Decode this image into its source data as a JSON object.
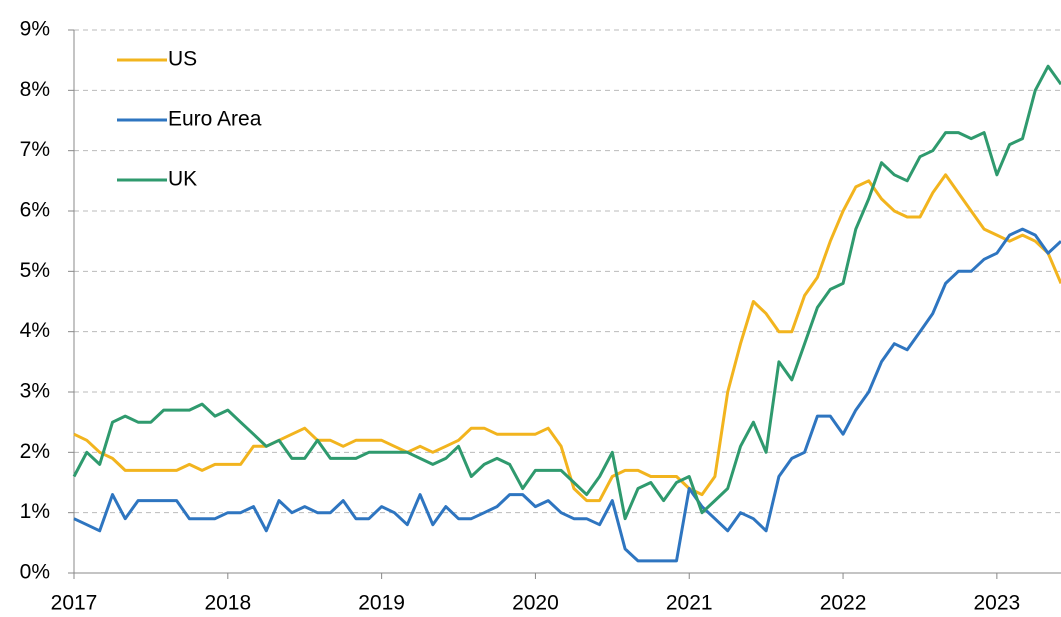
{
  "chart_data": {
    "type": "line",
    "x": [
      2017,
      2017.083,
      2017.167,
      2017.25,
      2017.333,
      2017.417,
      2017.5,
      2017.583,
      2017.667,
      2017.75,
      2017.833,
      2017.917,
      2018,
      2018.083,
      2018.167,
      2018.25,
      2018.333,
      2018.417,
      2018.5,
      2018.583,
      2018.667,
      2018.75,
      2018.833,
      2018.917,
      2019,
      2019.083,
      2019.167,
      2019.25,
      2019.333,
      2019.417,
      2019.5,
      2019.583,
      2019.667,
      2019.75,
      2019.833,
      2019.917,
      2020,
      2020.083,
      2020.167,
      2020.25,
      2020.333,
      2020.417,
      2020.5,
      2020.583,
      2020.667,
      2020.75,
      2020.833,
      2020.917,
      2021,
      2021.083,
      2021.167,
      2021.25,
      2021.333,
      2021.417,
      2021.5,
      2021.583,
      2021.667,
      2021.75,
      2021.833,
      2021.917,
      2022,
      2022.083,
      2022.167,
      2022.25,
      2022.333,
      2022.417,
      2022.5,
      2022.583,
      2022.667,
      2022.75,
      2022.833,
      2022.917,
      2023,
      2023.083,
      2023.167,
      2023.25,
      2023.333,
      2023.417
    ],
    "series": [
      {
        "name": "US",
        "color": "#f2b41e",
        "values": [
          2.3,
          2.2,
          2.0,
          1.9,
          1.7,
          1.7,
          1.7,
          1.7,
          1.7,
          1.8,
          1.7,
          1.8,
          1.8,
          1.8,
          2.1,
          2.1,
          2.2,
          2.3,
          2.4,
          2.2,
          2.2,
          2.1,
          2.2,
          2.2,
          2.2,
          2.1,
          2.0,
          2.1,
          2.0,
          2.1,
          2.2,
          2.4,
          2.4,
          2.3,
          2.3,
          2.3,
          2.3,
          2.4,
          2.1,
          1.4,
          1.2,
          1.2,
          1.6,
          1.7,
          1.7,
          1.6,
          1.6,
          1.6,
          1.4,
          1.3,
          1.6,
          3.0,
          3.8,
          4.5,
          4.3,
          4.0,
          4.0,
          4.6,
          4.9,
          5.5,
          6.0,
          6.4,
          6.5,
          6.2,
          6.0,
          5.9,
          5.9,
          6.3,
          6.6,
          6.3,
          6.0,
          5.7,
          5.6,
          5.5,
          5.6,
          5.5,
          5.3,
          4.8
        ]
      },
      {
        "name": "Euro Area",
        "color": "#2e75c0",
        "values": [
          0.9,
          0.8,
          0.7,
          1.3,
          0.9,
          1.2,
          1.2,
          1.2,
          1.2,
          0.9,
          0.9,
          0.9,
          1.0,
          1.0,
          1.1,
          0.7,
          1.2,
          1.0,
          1.1,
          1.0,
          1.0,
          1.2,
          0.9,
          0.9,
          1.1,
          1.0,
          0.8,
          1.3,
          0.8,
          1.1,
          0.9,
          0.9,
          1.0,
          1.1,
          1.3,
          1.3,
          1.1,
          1.2,
          1.0,
          0.9,
          0.9,
          0.8,
          1.2,
          0.4,
          0.2,
          0.2,
          0.2,
          0.2,
          1.4,
          1.1,
          0.9,
          0.7,
          1.0,
          0.9,
          0.7,
          1.6,
          1.9,
          2.0,
          2.6,
          2.6,
          2.3,
          2.7,
          3.0,
          3.5,
          3.8,
          3.7,
          4.0,
          4.3,
          4.8,
          5.0,
          5.0,
          5.2,
          5.3,
          5.6,
          5.7,
          5.6,
          5.3,
          5.5
        ]
      },
      {
        "name": "UK",
        "color": "#2f9a6e",
        "values": [
          1.6,
          2.0,
          1.8,
          2.5,
          2.6,
          2.5,
          2.5,
          2.7,
          2.7,
          2.7,
          2.8,
          2.6,
          2.7,
          2.5,
          2.3,
          2.1,
          2.2,
          1.9,
          1.9,
          2.2,
          1.9,
          1.9,
          1.9,
          2.0,
          2.0,
          2.0,
          2.0,
          1.9,
          1.8,
          1.9,
          2.1,
          1.6,
          1.8,
          1.9,
          1.8,
          1.4,
          1.7,
          1.7,
          1.7,
          1.5,
          1.3,
          1.6,
          2.0,
          0.9,
          1.4,
          1.5,
          1.2,
          1.5,
          1.6,
          1.0,
          1.2,
          1.4,
          2.1,
          2.5,
          2.0,
          3.5,
          3.2,
          3.8,
          4.4,
          4.7,
          4.8,
          5.7,
          6.2,
          6.8,
          6.6,
          6.5,
          6.9,
          7.0,
          7.3,
          7.3,
          7.2,
          7.3,
          6.6,
          7.1,
          7.2,
          8.0,
          8.4,
          8.1
        ]
      }
    ],
    "xlim": [
      2017,
      2023.417
    ],
    "xticks": [
      2017,
      2018,
      2019,
      2020,
      2021,
      2022,
      2023
    ],
    "ylim": [
      0,
      9
    ],
    "yticks": [
      {
        "value": 0,
        "label": "0%"
      },
      {
        "value": 1,
        "label": "1%"
      },
      {
        "value": 2,
        "label": "2%"
      },
      {
        "value": 3,
        "label": "3%"
      },
      {
        "value": 4,
        "label": "4%"
      },
      {
        "value": 5,
        "label": "5%"
      },
      {
        "value": 6,
        "label": "6%"
      },
      {
        "value": 7,
        "label": "7%"
      },
      {
        "value": 8,
        "label": "8%"
      },
      {
        "value": 9,
        "label": "9%"
      }
    ],
    "grid": true,
    "legend": "upper left"
  }
}
